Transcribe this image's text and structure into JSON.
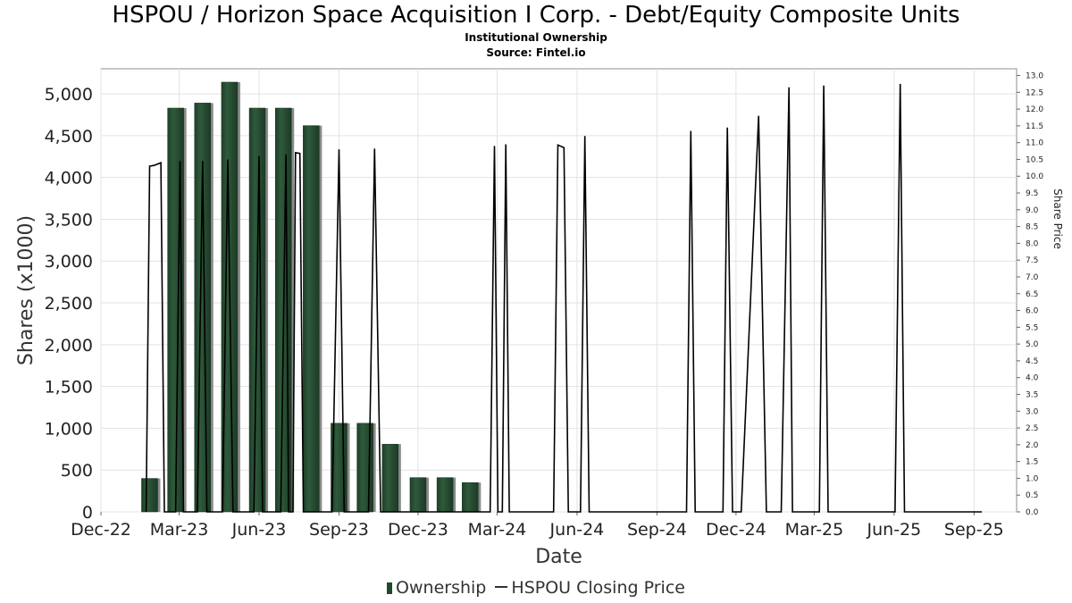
{
  "header": {
    "title": "HSPOU / Horizon Space Acquisition I Corp. - Debt/Equity Composite Units",
    "subtitle_1": "Institutional Ownership",
    "subtitle_2": "Source: Fintel.io"
  },
  "legend": {
    "ownership": "Ownership",
    "price": "HSPOU Closing Price"
  },
  "colors": {
    "bar": "#2f5a3b",
    "bar_shadow": "#8a8a8a",
    "line": "#000000",
    "grid": "#e3e3e3"
  },
  "chart_data": {
    "type": "bar",
    "xlabel": "Date",
    "ylabel": "Shares (x1000)",
    "y2label": "Share Price",
    "ylim": [
      0,
      5300
    ],
    "y2lim": [
      0,
      13.2
    ],
    "x_range": [
      "2022-12-01",
      "2025-10-20"
    ],
    "x_ticks": [
      {
        "label": "Dec-22",
        "date": "2022-12-01"
      },
      {
        "label": "Mar-23",
        "date": "2023-03-01"
      },
      {
        "label": "Jun-23",
        "date": "2023-06-01"
      },
      {
        "label": "Sep-23",
        "date": "2023-09-01"
      },
      {
        "label": "Dec-23",
        "date": "2023-12-01"
      },
      {
        "label": "Mar-24",
        "date": "2024-03-01"
      },
      {
        "label": "Jun-24",
        "date": "2024-06-01"
      },
      {
        "label": "Sep-24",
        "date": "2024-09-01"
      },
      {
        "label": "Dec-24",
        "date": "2024-12-01"
      },
      {
        "label": "Mar-25",
        "date": "2025-03-01"
      },
      {
        "label": "Jun-25",
        "date": "2025-06-01"
      },
      {
        "label": "Sep-25",
        "date": "2025-09-01"
      }
    ],
    "y_ticks": [
      {
        "label": "0",
        "value": 0
      },
      {
        "label": "500",
        "value": 500
      },
      {
        "label": "1,000",
        "value": 1000
      },
      {
        "label": "1,500",
        "value": 1500
      },
      {
        "label": "2,000",
        "value": 2000
      },
      {
        "label": "2,500",
        "value": 2500
      },
      {
        "label": "3,000",
        "value": 3000
      },
      {
        "label": "3,500",
        "value": 3500
      },
      {
        "label": "4,000",
        "value": 4000
      },
      {
        "label": "4,500",
        "value": 4500
      },
      {
        "label": "5,000",
        "value": 5000
      }
    ],
    "y2_ticks": [
      {
        "label": "0.0",
        "value": 0.0
      },
      {
        "label": "0.5",
        "value": 0.5
      },
      {
        "label": "1.0",
        "value": 1.0
      },
      {
        "label": "1.5",
        "value": 1.5
      },
      {
        "label": "2.0",
        "value": 2.0
      },
      {
        "label": "2.5",
        "value": 2.5
      },
      {
        "label": "3.0",
        "value": 3.0
      },
      {
        "label": "3.5",
        "value": 3.5
      },
      {
        "label": "4.0",
        "value": 4.0
      },
      {
        "label": "4.5",
        "value": 4.5
      },
      {
        "label": "5.0",
        "value": 5.0
      },
      {
        "label": "5.5",
        "value": 5.5
      },
      {
        "label": "6.0",
        "value": 6.0
      },
      {
        "label": "6.5",
        "value": 6.5
      },
      {
        "label": "7.0",
        "value": 7.0
      },
      {
        "label": "7.5",
        "value": 7.5
      },
      {
        "label": "8.0",
        "value": 8.0
      },
      {
        "label": "8.5",
        "value": 8.5
      },
      {
        "label": "9.0",
        "value": 9.0
      },
      {
        "label": "9.5",
        "value": 9.5
      },
      {
        "label": "10.0",
        "value": 10.0
      },
      {
        "label": "10.5",
        "value": 10.5
      },
      {
        "label": "11.0",
        "value": 11.0
      },
      {
        "label": "11.5",
        "value": 11.5
      },
      {
        "label": "12.0",
        "value": 12.0
      },
      {
        "label": "12.5",
        "value": 12.5
      },
      {
        "label": "13.0",
        "value": 13.0
      }
    ],
    "grid": true,
    "legend_position": "bottom",
    "series": [
      {
        "name": "Ownership",
        "type": "bar",
        "points": [
          {
            "date": "2023-01-26",
            "value": 400
          },
          {
            "date": "2023-02-25",
            "value": 4830
          },
          {
            "date": "2023-03-28",
            "value": 4890
          },
          {
            "date": "2023-04-28",
            "value": 5140
          },
          {
            "date": "2023-05-30",
            "value": 4830
          },
          {
            "date": "2023-06-29",
            "value": 4830
          },
          {
            "date": "2023-07-31",
            "value": 4620
          },
          {
            "date": "2023-09-01",
            "value": 1060
          },
          {
            "date": "2023-10-01",
            "value": 1060
          },
          {
            "date": "2023-10-30",
            "value": 810
          },
          {
            "date": "2023-12-01",
            "value": 410
          },
          {
            "date": "2024-01-01",
            "value": 410
          },
          {
            "date": "2024-01-30",
            "value": 350
          }
        ]
      },
      {
        "name": "HSPOU Closing Price",
        "type": "line",
        "points": [
          {
            "date": "2023-01-22",
            "value": 0.0
          },
          {
            "date": "2023-01-26",
            "value": 10.3
          },
          {
            "date": "2023-01-31",
            "value": 10.32
          },
          {
            "date": "2023-02-08",
            "value": 10.4
          },
          {
            "date": "2023-02-12",
            "value": 0.0
          },
          {
            "date": "2023-02-25",
            "value": 0.0
          },
          {
            "date": "2023-03-02",
            "value": 10.45
          },
          {
            "date": "2023-03-06",
            "value": 0.0
          },
          {
            "date": "2023-03-22",
            "value": 0.0
          },
          {
            "date": "2023-03-28",
            "value": 10.45
          },
          {
            "date": "2023-04-02",
            "value": 0.0
          },
          {
            "date": "2023-04-20",
            "value": 0.0
          },
          {
            "date": "2023-04-26",
            "value": 10.5
          },
          {
            "date": "2023-05-02",
            "value": 0.0
          },
          {
            "date": "2023-05-26",
            "value": 0.0
          },
          {
            "date": "2023-06-01",
            "value": 10.6
          },
          {
            "date": "2023-06-05",
            "value": 0.0
          },
          {
            "date": "2023-06-26",
            "value": 0.0
          },
          {
            "date": "2023-07-02",
            "value": 10.65
          },
          {
            "date": "2023-07-05",
            "value": 0.0
          },
          {
            "date": "2023-07-10",
            "value": 0.0
          },
          {
            "date": "2023-07-13",
            "value": 10.7
          },
          {
            "date": "2023-07-18",
            "value": 10.68
          },
          {
            "date": "2023-07-22",
            "value": 0.0
          },
          {
            "date": "2023-08-24",
            "value": 0.0
          },
          {
            "date": "2023-09-01",
            "value": 10.8
          },
          {
            "date": "2023-09-07",
            "value": 0.0
          },
          {
            "date": "2023-10-05",
            "value": 0.0
          },
          {
            "date": "2023-10-12",
            "value": 10.82
          },
          {
            "date": "2023-10-19",
            "value": 0.0
          },
          {
            "date": "2024-02-22",
            "value": 0.0
          },
          {
            "date": "2024-02-27",
            "value": 10.9
          },
          {
            "date": "2024-03-02",
            "value": 0.0
          },
          {
            "date": "2024-03-07",
            "value": 0.0
          },
          {
            "date": "2024-03-11",
            "value": 10.95
          },
          {
            "date": "2024-03-15",
            "value": 0.0
          },
          {
            "date": "2024-05-05",
            "value": 0.0
          },
          {
            "date": "2024-05-10",
            "value": 10.93
          },
          {
            "date": "2024-05-17",
            "value": 10.85
          },
          {
            "date": "2024-05-22",
            "value": 0.0
          },
          {
            "date": "2024-06-05",
            "value": 0.0
          },
          {
            "date": "2024-06-10",
            "value": 11.2
          },
          {
            "date": "2024-06-15",
            "value": 0.0
          },
          {
            "date": "2024-10-05",
            "value": 0.0
          },
          {
            "date": "2024-10-10",
            "value": 11.35
          },
          {
            "date": "2024-10-15",
            "value": 0.0
          },
          {
            "date": "2024-11-16",
            "value": 0.0
          },
          {
            "date": "2024-11-21",
            "value": 11.45
          },
          {
            "date": "2024-11-27",
            "value": 0.0
          },
          {
            "date": "2024-12-07",
            "value": 0.0
          },
          {
            "date": "2024-12-27",
            "value": 11.8
          },
          {
            "date": "2025-01-05",
            "value": 0.0
          },
          {
            "date": "2025-01-22",
            "value": 0.0
          },
          {
            "date": "2025-01-31",
            "value": 12.65
          },
          {
            "date": "2025-02-04",
            "value": 0.0
          },
          {
            "date": "2025-03-07",
            "value": 0.0
          },
          {
            "date": "2025-03-12",
            "value": 12.7
          },
          {
            "date": "2025-03-17",
            "value": 0.0
          },
          {
            "date": "2025-06-02",
            "value": 0.0
          },
          {
            "date": "2025-06-08",
            "value": 12.75
          },
          {
            "date": "2025-06-13",
            "value": 0.0
          },
          {
            "date": "2025-09-10",
            "value": 0.0
          }
        ]
      }
    ]
  }
}
